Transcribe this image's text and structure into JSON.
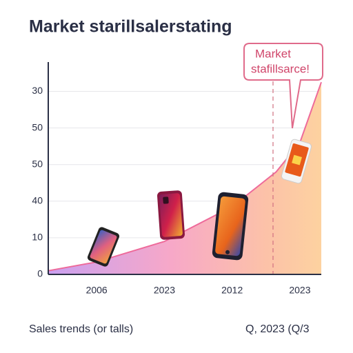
{
  "chart_data": {
    "type": "area",
    "title": "Market starillsalerstating",
    "annotation": [
      "Market",
      "stafillsarce!"
    ],
    "x_caption": "Sales trends (or talls)",
    "date_caption": "Q, 2023 (Q/3",
    "categories": [
      "2006",
      "2023",
      "2012",
      "2023"
    ],
    "x": [
      -0.714,
      0,
      1,
      2,
      2.65,
      3,
      3.316
    ],
    "values": [
      0.1,
      0.34,
      0.9,
      1.85,
      2.8,
      3.6,
      5.25
    ],
    "color": "#ee6a9a",
    "xlim": [
      -0.714,
      3.316
    ],
    "ylim": [
      0,
      5.8
    ],
    "yticks": [
      {
        "value": 0,
        "label": "0"
      },
      {
        "value": 1,
        "label": "10"
      },
      {
        "value": 2,
        "label": "40"
      },
      {
        "value": 3,
        "label": "50"
      },
      {
        "value": 4,
        "label": "50"
      },
      {
        "value": 5,
        "label": "30"
      }
    ],
    "grid": true
  }
}
